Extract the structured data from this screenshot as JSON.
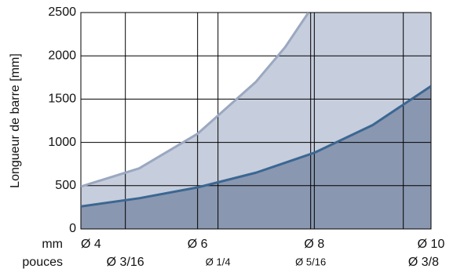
{
  "chart_data": {
    "type": "area",
    "ylabel": "Longueur de barre [mm]",
    "x_row_labels": [
      "mm",
      "pouces"
    ],
    "xlim": [
      4,
      10
    ],
    "xticks": [
      {
        "value": 4,
        "label": "Ø 4"
      },
      {
        "value": 6,
        "label": "Ø 6"
      },
      {
        "value": 8,
        "label": "Ø 8"
      },
      {
        "value": 10,
        "label": "Ø 10"
      }
    ],
    "xticks_inch": [
      {
        "value": 4.7625,
        "label": "Ø 3/16"
      },
      {
        "value": 6.35,
        "label": "Ø 1/4"
      },
      {
        "value": 7.9375,
        "label": "Ø 5/16"
      },
      {
        "value": 9.525,
        "label": "Ø 3/8"
      }
    ],
    "ylim": [
      0,
      2500
    ],
    "yticks": [
      0,
      500,
      1000,
      1500,
      2000,
      2500
    ],
    "grid": true,
    "series": [
      {
        "color": "#8a97b0",
        "line_color": "#3b6792",
        "x": [
          4,
          5,
          6,
          7,
          8,
          9,
          10
        ],
        "values": [
          260,
          355,
          480,
          650,
          880,
          1200,
          1650
        ]
      },
      {
        "color": "#c6cddc",
        "line_color": "#9aa8c0",
        "x": [
          4,
          5,
          6,
          7,
          7.5,
          7.9
        ],
        "values": [
          490,
          700,
          1100,
          1700,
          2100,
          2500
        ]
      }
    ]
  }
}
